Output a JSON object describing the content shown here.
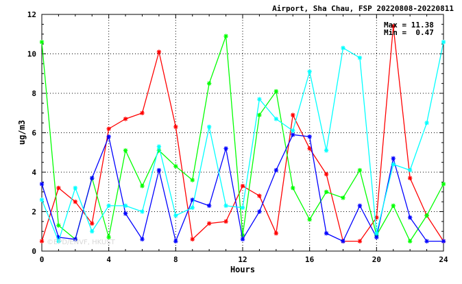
{
  "chart_data": {
    "type": "line",
    "title": "Airport, Sha Chau, FSP 20220808-20220811",
    "xlabel": "Hours",
    "ylabel": "ug/m3",
    "xlim": [
      0,
      24
    ],
    "ylim": [
      0,
      12
    ],
    "x_ticks": [
      "0",
      "4",
      "8",
      "12",
      "16",
      "20",
      "24"
    ],
    "y_ticks": [
      "0",
      "2",
      "4",
      "6",
      "8",
      "10",
      "12"
    ],
    "grid": true,
    "annotations": {
      "max_label": "Max = 11.38",
      "min_label": "Min =  0.47"
    },
    "watermark": "©EPD/ENVF, HKUST",
    "x": [
      0,
      1,
      2,
      3,
      4,
      5,
      6,
      7,
      8,
      9,
      10,
      11,
      12,
      13,
      14,
      15,
      16,
      17,
      18,
      19,
      20,
      21,
      22,
      23,
      24
    ],
    "series": [
      {
        "color": "#ff0000",
        "values": [
          0.5,
          3.2,
          2.5,
          1.4,
          6.2,
          6.7,
          7.0,
          10.1,
          6.3,
          0.6,
          1.4,
          1.5,
          3.3,
          2.8,
          0.9,
          6.9,
          5.2,
          3.9,
          0.5,
          0.5,
          1.7,
          11.4,
          3.7,
          1.8,
          0.5
        ]
      },
      {
        "color": "#00ff00",
        "values": [
          10.6,
          1.3,
          0.6,
          3.7,
          0.7,
          5.1,
          3.3,
          5.1,
          4.3,
          3.6,
          8.5,
          10.9,
          0.8,
          6.9,
          8.1,
          3.2,
          1.6,
          3.0,
          2.7,
          4.1,
          0.8,
          2.3,
          0.5,
          1.8,
          3.4
        ]
      },
      {
        "color": "#0000ff",
        "values": [
          3.4,
          0.7,
          0.6,
          3.7,
          5.8,
          1.9,
          0.6,
          4.1,
          0.5,
          2.6,
          2.3,
          5.2,
          0.6,
          2.0,
          4.1,
          5.9,
          5.8,
          0.9,
          0.5,
          2.3,
          0.7,
          4.7,
          1.7,
          0.5,
          0.5
        ]
      },
      {
        "color": "#00ffff",
        "values": [
          2.6,
          0.5,
          3.2,
          1.0,
          2.3,
          2.3,
          2.0,
          5.3,
          1.8,
          2.2,
          6.3,
          2.3,
          2.2,
          7.7,
          6.7,
          6.1,
          9.1,
          5.1,
          10.3,
          9.8,
          0.9,
          4.4,
          4.1,
          6.5,
          10.6
        ]
      }
    ]
  }
}
